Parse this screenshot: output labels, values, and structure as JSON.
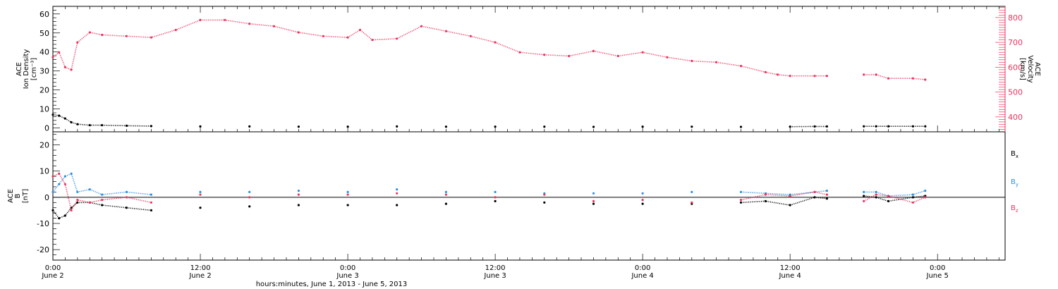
{
  "colors": {
    "pink": "#e8365f",
    "blue": "#2f8fe0",
    "black": "#000000"
  },
  "xaxis": {
    "ticks": [
      {
        "t": 0,
        "time": "0:00",
        "day": "June 2"
      },
      {
        "t": 12,
        "time": "12:00",
        "day": "June 2"
      },
      {
        "t": 24,
        "time": "0:00",
        "day": "June 3"
      },
      {
        "t": 36,
        "time": "12:00",
        "day": "June 3"
      },
      {
        "t": 48,
        "time": "0:00",
        "day": "June 4"
      },
      {
        "t": 60,
        "time": "12:00",
        "day": "June 4"
      },
      {
        "t": 72,
        "time": "0:00",
        "day": "June 5"
      }
    ],
    "title": "hours:minutes, June  1, 2013 - June  5, 2013",
    "range": [
      0,
      77.5
    ]
  },
  "chart_data": [
    {
      "type": "scatter",
      "panel": "top",
      "xlabel": "",
      "ylabel": [
        "ACE",
        "Ion Density",
        "[cm⁻³]"
      ],
      "ylim": [
        -2,
        64
      ],
      "yticks": [
        0,
        10,
        20,
        30,
        40,
        50,
        60
      ],
      "y2label": [
        "ACE",
        "Velocity",
        "[km/s]"
      ],
      "y2lim": [
        340,
        845
      ],
      "y2ticks": [
        400,
        500,
        600,
        700,
        800
      ],
      "series": [
        {
          "axis": "y2",
          "color": "#e8365f",
          "x": [
            0,
            0.5,
            1,
            1.5,
            2,
            3,
            4,
            6,
            8,
            10,
            12,
            14,
            16,
            18,
            20,
            22,
            24,
            25,
            26,
            28,
            30,
            32,
            34,
            36,
            38,
            40,
            42,
            44,
            46,
            48,
            50,
            52,
            54,
            56,
            58,
            59,
            60,
            62,
            63,
            66,
            67,
            68,
            70,
            71
          ],
          "values": [
            640,
            660,
            600,
            590,
            700,
            740,
            730,
            725,
            720,
            750,
            790,
            790,
            775,
            765,
            740,
            725,
            720,
            750,
            710,
            715,
            765,
            745,
            725,
            700,
            660,
            650,
            645,
            665,
            645,
            660,
            640,
            625,
            620,
            605,
            580,
            570,
            565,
            565,
            565,
            570,
            570,
            555,
            555,
            550
          ]
        },
        {
          "axis": "y",
          "color": "#000000",
          "x": [
            0,
            0.5,
            1,
            1.5,
            2,
            3,
            4,
            6,
            8,
            12,
            16,
            20,
            24,
            28,
            32,
            36,
            40,
            44,
            48,
            52,
            56,
            60,
            62,
            63,
            66,
            67,
            68,
            70,
            71
          ],
          "values": [
            7,
            6.5,
            5,
            3,
            2,
            1.5,
            1.5,
            1.2,
            1,
            0.8,
            0.8,
            0.7,
            0.7,
            0.8,
            0.7,
            0.7,
            0.7,
            0.6,
            0.7,
            0.7,
            0.6,
            0.7,
            0.8,
            0.8,
            0.9,
            0.9,
            0.9,
            0.9,
            0.9
          ]
        }
      ]
    },
    {
      "type": "scatter",
      "panel": "bottom",
      "xlabel": "",
      "ylabel": [
        "ACE",
        "B",
        "[nT]"
      ],
      "ylim": [
        -24,
        25
      ],
      "yticks": [
        -20,
        -10,
        0,
        10,
        20
      ],
      "zero_line": true,
      "series": [
        {
          "name": "B",
          "sub": "x",
          "color": "#000000",
          "x": [
            0,
            0.5,
            1,
            1.5,
            2,
            3,
            4,
            6,
            8,
            12,
            16,
            20,
            24,
            28,
            32,
            36,
            40,
            44,
            48,
            52,
            56,
            58,
            60,
            62,
            63,
            66,
            67,
            68,
            70,
            71
          ],
          "values": [
            -5,
            -8,
            -7,
            -4,
            -2,
            -2,
            -3,
            -4,
            -5,
            -4,
            -3.5,
            -3,
            -3,
            -3,
            -2.5,
            -1.5,
            -2,
            -2.5,
            -2.5,
            -2.5,
            -2,
            -1.5,
            -3,
            0,
            -0.5,
            0.5,
            0,
            -1.5,
            0,
            0.5
          ]
        },
        {
          "name": "B",
          "sub": "y",
          "color": "#2f8fe0",
          "x": [
            0,
            0.5,
            1,
            1.5,
            2,
            3,
            4,
            6,
            8,
            12,
            16,
            20,
            24,
            28,
            32,
            36,
            40,
            44,
            48,
            52,
            56,
            58,
            60,
            62,
            63,
            66,
            67,
            68,
            70,
            71
          ],
          "values": [
            2,
            5,
            8,
            9,
            2,
            3,
            1,
            2,
            1,
            2,
            2,
            2.5,
            2,
            3,
            2,
            2,
            1.5,
            1.5,
            1.5,
            2,
            2,
            1.5,
            1,
            2,
            2.5,
            2,
            2,
            0.5,
            1,
            2.5
          ]
        },
        {
          "name": "B",
          "sub": "z",
          "color": "#e8365f",
          "x": [
            0,
            0.5,
            1,
            1.5,
            2,
            3,
            4,
            6,
            8,
            12,
            16,
            20,
            24,
            28,
            32,
            36,
            40,
            44,
            48,
            52,
            56,
            58,
            60,
            62,
            63,
            66,
            67,
            68,
            70,
            71
          ],
          "values": [
            8,
            9,
            5,
            -5,
            -1,
            -2,
            -1,
            0,
            -2,
            1,
            0,
            1,
            1,
            1.5,
            1,
            0,
            1,
            -1.5,
            -1,
            -2,
            -1,
            1,
            0.5,
            2,
            1,
            -1.5,
            1,
            0.5,
            -2,
            0
          ]
        }
      ]
    }
  ]
}
